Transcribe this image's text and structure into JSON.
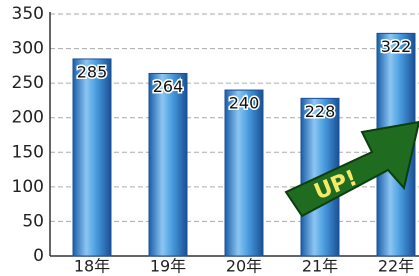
{
  "chart_data": {
    "type": "bar",
    "categories": [
      "18年",
      "19年",
      "20年",
      "21年",
      "22年"
    ],
    "values": [
      285,
      264,
      240,
      228,
      322
    ],
    "color": "#3a86d0",
    "ylim": [
      0,
      350
    ],
    "yticks": [
      0,
      50,
      100,
      150,
      200,
      250,
      300,
      350
    ],
    "grid": true,
    "annotation": "UP!"
  }
}
